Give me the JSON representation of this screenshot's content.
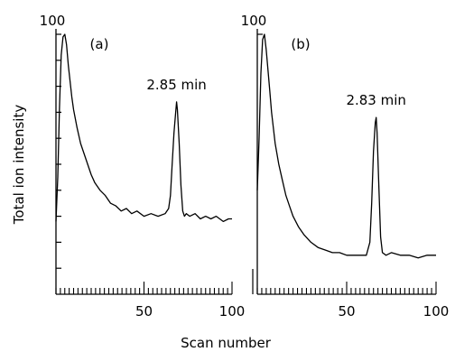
{
  "chart_data": [
    {
      "type": "line",
      "panel_label": "(a)",
      "y_top_label": "100",
      "peak_annotation": "2.85 min",
      "x_tick_labels": [
        "50",
        "100"
      ],
      "xlim": [
        0,
        100
      ],
      "ylim": [
        0,
        100
      ],
      "y_ticks_count": 10,
      "series": [
        {
          "x": [
            0,
            1,
            2,
            3,
            4,
            5,
            6,
            7,
            8,
            9,
            10,
            12,
            14,
            16,
            18,
            20,
            22,
            25,
            28,
            31,
            34,
            37,
            40,
            43,
            46,
            50,
            54,
            58,
            62,
            64,
            65,
            66,
            67,
            68,
            68.5,
            69,
            70,
            71,
            72,
            73,
            74,
            76,
            79,
            82,
            85,
            88,
            91,
            95,
            98,
            100
          ],
          "y": [
            28,
            45,
            72,
            92,
            99,
            100,
            96,
            88,
            82,
            76,
            71,
            64,
            58,
            54,
            50,
            46,
            43,
            40,
            38,
            35,
            34,
            32,
            33,
            31,
            32,
            30,
            31,
            30,
            31,
            33,
            38,
            50,
            62,
            70,
            74,
            71,
            58,
            42,
            32,
            30,
            31,
            30,
            31,
            29,
            30,
            29,
            30,
            28,
            29,
            29
          ]
        }
      ]
    },
    {
      "type": "line",
      "panel_label": "(b)",
      "y_top_label": "100",
      "peak_annotation": "2.83 min",
      "x_tick_labels": [
        "50",
        "100"
      ],
      "xlim": [
        0,
        100
      ],
      "ylim": [
        0,
        100
      ],
      "y_ticks_count": 1,
      "series": [
        {
          "x": [
            0,
            1,
            2,
            3,
            4,
            5,
            6,
            7,
            8,
            9,
            10,
            12,
            14,
            16,
            18,
            20,
            23,
            26,
            30,
            34,
            38,
            42,
            46,
            50,
            54,
            58,
            61,
            63,
            64,
            65,
            66,
            66.5,
            67,
            68,
            69,
            70,
            72,
            75,
            80,
            85,
            90,
            95,
            100
          ],
          "y": [
            40,
            60,
            85,
            98,
            100,
            94,
            86,
            78,
            70,
            64,
            58,
            50,
            44,
            38,
            34,
            30,
            26,
            23,
            20,
            18,
            17,
            16,
            16,
            15,
            15,
            15,
            15,
            20,
            35,
            55,
            66,
            68,
            62,
            42,
            22,
            16,
            15,
            16,
            15,
            15,
            14,
            15,
            15
          ]
        }
      ]
    }
  ],
  "y_axis_title": "Total ion intensity",
  "x_axis_title": "Scan number"
}
